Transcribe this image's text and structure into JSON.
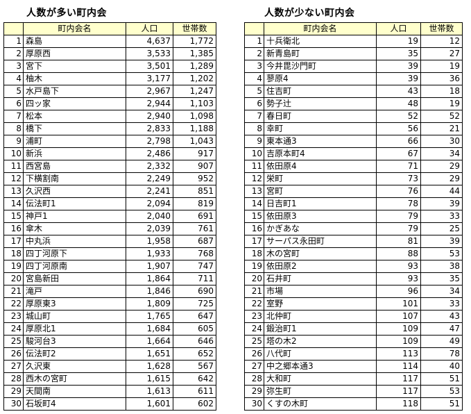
{
  "left": {
    "title": "人数が多い町内会",
    "headers": [
      "",
      "町内会名",
      "人口",
      "世帯数"
    ],
    "rows": [
      [
        "1",
        "森島",
        "4,637",
        "1,772"
      ],
      [
        "2",
        "厚原西",
        "3,533",
        "1,385"
      ],
      [
        "3",
        "宮下",
        "3,501",
        "1,289"
      ],
      [
        "4",
        "柚木",
        "3,177",
        "1,202"
      ],
      [
        "5",
        "水戸島下",
        "2,967",
        "1,247"
      ],
      [
        "6",
        "四ッ家",
        "2,944",
        "1,103"
      ],
      [
        "7",
        "松本",
        "2,940",
        "1,098"
      ],
      [
        "8",
        "橋下",
        "2,833",
        "1,188"
      ],
      [
        "9",
        "浦町",
        "2,798",
        "1,043"
      ],
      [
        "10",
        "新浜",
        "2,486",
        "917"
      ],
      [
        "11",
        "西宮島",
        "2,332",
        "907"
      ],
      [
        "12",
        "下横割南",
        "2,249",
        "952"
      ],
      [
        "13",
        "久沢西",
        "2,241",
        "851"
      ],
      [
        "14",
        "伝法町1",
        "2,094",
        "819"
      ],
      [
        "15",
        "神戸1",
        "2,040",
        "691"
      ],
      [
        "16",
        "傘木",
        "2,039",
        "761"
      ],
      [
        "17",
        "中丸浜",
        "1,958",
        "687"
      ],
      [
        "18",
        "四丁河原下",
        "1,933",
        "768"
      ],
      [
        "19",
        "四丁河原南",
        "1,907",
        "747"
      ],
      [
        "20",
        "宮島新田",
        "1,864",
        "711"
      ],
      [
        "21",
        "滝戸",
        "1,846",
        "690"
      ],
      [
        "22",
        "厚原東3",
        "1,809",
        "725"
      ],
      [
        "23",
        "城山町",
        "1,765",
        "647"
      ],
      [
        "24",
        "厚原北1",
        "1,684",
        "605"
      ],
      [
        "25",
        "駿河台3",
        "1,664",
        "646"
      ],
      [
        "26",
        "伝法町2",
        "1,651",
        "652"
      ],
      [
        "27",
        "久沢東",
        "1,628",
        "567"
      ],
      [
        "28",
        "西木の宮町",
        "1,615",
        "642"
      ],
      [
        "29",
        "天間南",
        "1,613",
        "611"
      ],
      [
        "30",
        "石坂町4",
        "1,601",
        "602"
      ]
    ]
  },
  "right": {
    "title": "人数が少ない町内会",
    "headers": [
      "",
      "町内会名",
      "人口",
      "世帯数"
    ],
    "rows": [
      [
        "1",
        "十兵衛北",
        "19",
        "12"
      ],
      [
        "2",
        "新青島町",
        "35",
        "27"
      ],
      [
        "3",
        "今井毘沙門町",
        "39",
        "19"
      ],
      [
        "4",
        "蓼原4",
        "39",
        "36"
      ],
      [
        "5",
        "住吉町",
        "43",
        "18"
      ],
      [
        "6",
        "勢子辻",
        "48",
        "19"
      ],
      [
        "7",
        "春日町",
        "52",
        "52"
      ],
      [
        "8",
        "幸町",
        "56",
        "21"
      ],
      [
        "9",
        "東本通3",
        "66",
        "30"
      ],
      [
        "10",
        "吉原本町4",
        "67",
        "34"
      ],
      [
        "11",
        "依田原4",
        "71",
        "29"
      ],
      [
        "12",
        "栄町",
        "73",
        "29"
      ],
      [
        "13",
        "宮町",
        "76",
        "44"
      ],
      [
        "14",
        "日吉町1",
        "78",
        "39"
      ],
      [
        "15",
        "依田原3",
        "79",
        "33"
      ],
      [
        "16",
        "かぎあな",
        "79",
        "25"
      ],
      [
        "17",
        "サーパス永田町",
        "81",
        "39"
      ],
      [
        "18",
        "木の宮町",
        "88",
        "53"
      ],
      [
        "19",
        "依田原2",
        "93",
        "38"
      ],
      [
        "20",
        "石井町",
        "93",
        "35"
      ],
      [
        "21",
        "市場",
        "96",
        "34"
      ],
      [
        "22",
        "室野",
        "101",
        "33"
      ],
      [
        "23",
        "北仲町",
        "107",
        "43"
      ],
      [
        "24",
        "鍛治町1",
        "109",
        "47"
      ],
      [
        "25",
        "塔の木2",
        "109",
        "49"
      ],
      [
        "26",
        "八代町",
        "113",
        "78"
      ],
      [
        "27",
        "中之郷本通3",
        "114",
        "40"
      ],
      [
        "28",
        "大和町",
        "117",
        "51"
      ],
      [
        "29",
        "弥生町",
        "117",
        "53"
      ],
      [
        "30",
        "くすの木町",
        "118",
        "51"
      ]
    ]
  }
}
